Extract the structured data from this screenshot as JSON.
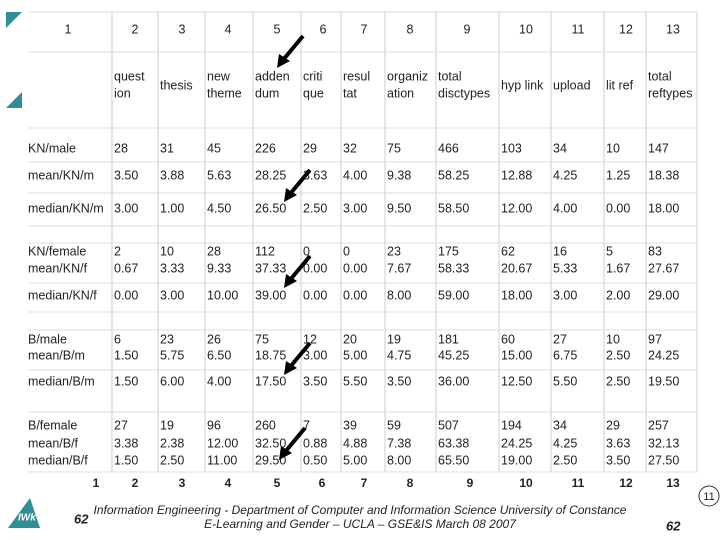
{
  "table": {
    "column_numbers": [
      "1",
      "2",
      "3",
      "4",
      "5",
      "6",
      "7",
      "8",
      "9",
      "10",
      "11",
      "12",
      "13"
    ],
    "column_labels": [
      [
        "quest",
        "ion"
      ],
      [
        "thesis"
      ],
      [
        "new",
        "theme"
      ],
      [
        "adden",
        "dum"
      ],
      [
        "criti",
        "que"
      ],
      [
        "resul",
        "tat"
      ],
      [
        "organiz",
        "ation"
      ],
      [
        "total",
        "disctypes"
      ],
      [
        "hyp link"
      ],
      [
        "upload"
      ],
      [
        "lit ref"
      ],
      [
        "total",
        "reftypes"
      ]
    ],
    "rows": [
      {
        "label": "KN/male",
        "values": [
          "28",
          "31",
          "45",
          "226",
          "29",
          "32",
          "75",
          "466",
          "103",
          "34",
          "10",
          "147"
        ]
      },
      {
        "label": "mean/KN/m",
        "values": [
          "3.50",
          "3.88",
          "5.63",
          "28.25",
          "3.63",
          "4.00",
          "9.38",
          "58.25",
          "12.88",
          "4.25",
          "1.25",
          "18.38"
        ]
      },
      {
        "label": "median/KN/m",
        "values": [
          "3.00",
          "1.00",
          "4.50",
          "26.50",
          "2.50",
          "3.00",
          "9.50",
          "58.50",
          "12.00",
          "4.00",
          "0.00",
          "18.00"
        ]
      },
      {
        "label": "KN/female",
        "values": [
          "2",
          "10",
          "28",
          "112",
          "0",
          "0",
          "23",
          "175",
          "62",
          "16",
          "5",
          "83"
        ]
      },
      {
        "label": "mean/KN/f",
        "values": [
          "0.67",
          "3.33",
          "9.33",
          "37.33",
          "0.00",
          "0.00",
          "7.67",
          "58.33",
          "20.67",
          "5.33",
          "1.67",
          "27.67"
        ]
      },
      {
        "label": "median/KN/f",
        "values": [
          "0.00",
          "3.00",
          "10.00",
          "39.00",
          "0.00",
          "0.00",
          "8.00",
          "59.00",
          "18.00",
          "3.00",
          "2.00",
          "29.00"
        ]
      },
      {
        "label": "B/male",
        "values": [
          "6",
          "23",
          "26",
          "75",
          "12",
          "20",
          "19",
          "181",
          "60",
          "27",
          "10",
          "97"
        ]
      },
      {
        "label": "mean/B/m",
        "values": [
          "1.50",
          "5.75",
          "6.50",
          "18.75",
          "3.00",
          "5.00",
          "4.75",
          "45.25",
          "15.00",
          "6.75",
          "2.50",
          "24.25"
        ]
      },
      {
        "label": "median/B/m",
        "values": [
          "1.50",
          "6.00",
          "4.00",
          "17.50",
          "3.50",
          "5.50",
          "3.50",
          "36.00",
          "12.50",
          "5.50",
          "2.50",
          "19.50"
        ]
      },
      {
        "label": "B/female",
        "values": [
          "27",
          "19",
          "96",
          "260",
          "7",
          "39",
          "59",
          "507",
          "194",
          "34",
          "29",
          "257"
        ]
      },
      {
        "label": "mean/B/f",
        "values": [
          "3.38",
          "2.38",
          "12.00",
          "32.50",
          "0.88",
          "4.88",
          "7.38",
          "63.38",
          "24.25",
          "4.25",
          "3.63",
          "32.13"
        ]
      },
      {
        "label": "median/B/f",
        "values": [
          "1.50",
          "2.50",
          "11.00",
          "29.50",
          "0.50",
          "5.00",
          "8.00",
          "65.50",
          "19.00",
          "2.50",
          "3.50",
          "27.50"
        ]
      }
    ],
    "footer_numbers": [
      "1",
      "2",
      "3",
      "4",
      "5",
      "6",
      "7",
      "8",
      "9",
      "10",
      "11",
      "12",
      "13"
    ]
  },
  "footer": {
    "lines": [
      "Information Engineering - Department of Computer and Information Science University of Constance",
      "E-Learning and Gender – UCLA – GSE&IS March 08 2007"
    ],
    "page_left": "62",
    "page_right": "62",
    "slide_badge": "11"
  }
}
